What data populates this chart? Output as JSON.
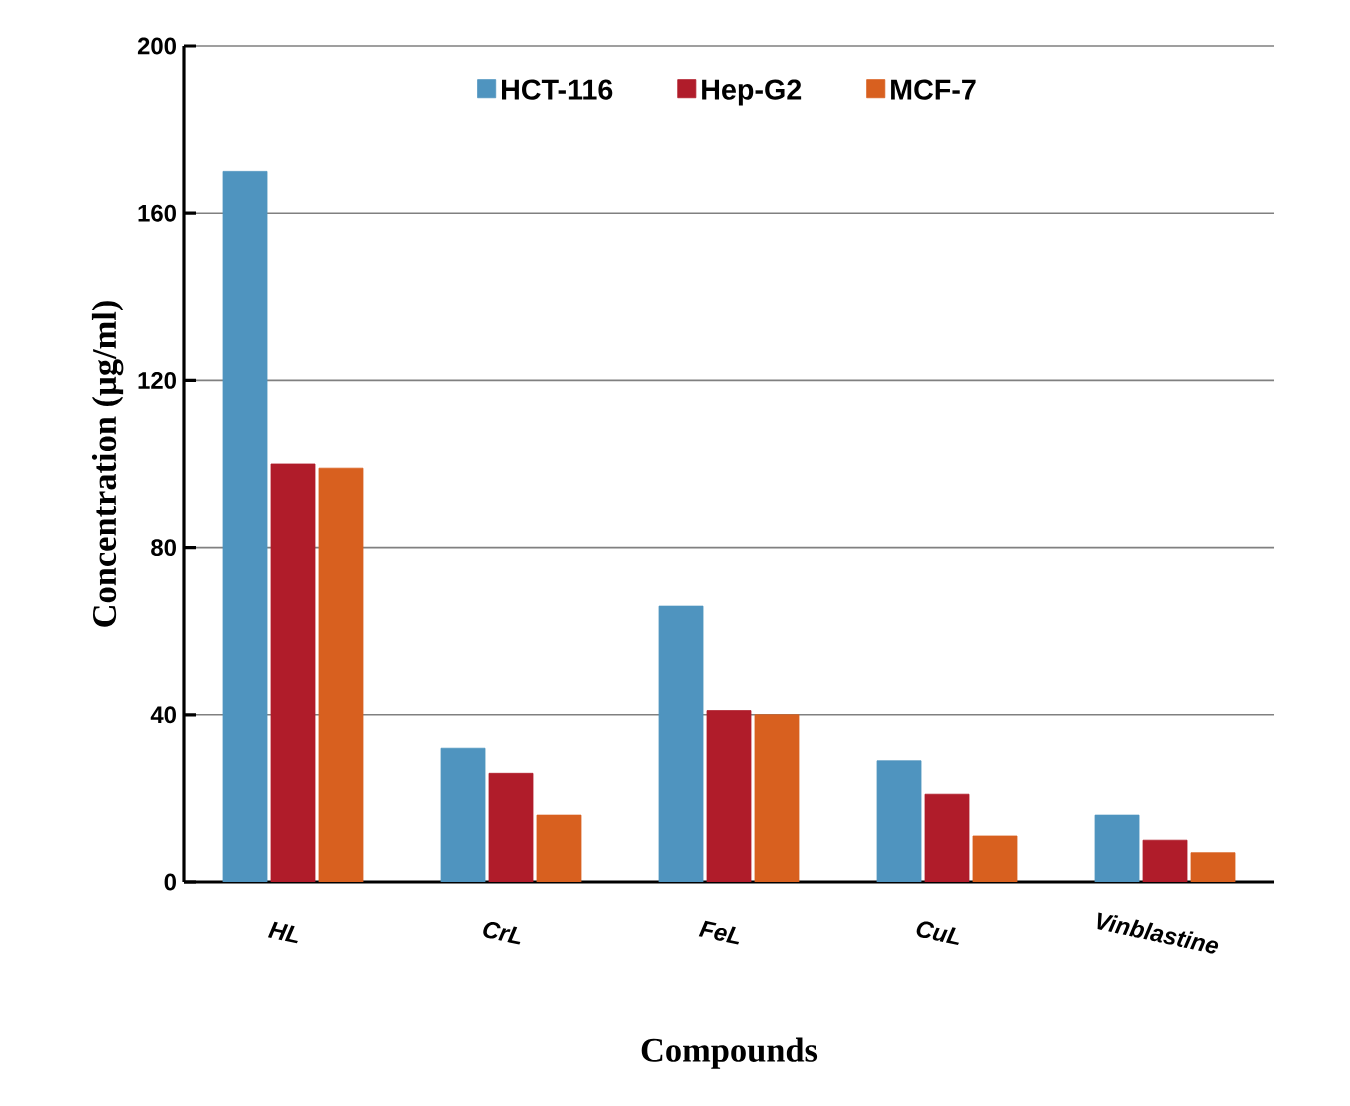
{
  "chart_data": {
    "type": "bar",
    "xlabel": "Compounds",
    "ylabel": "Concentration (µg/ml)",
    "categories": [
      "HL",
      "CrL",
      "FeL",
      "CuL",
      "Vinblastine"
    ],
    "series": [
      {
        "name": "HCT-116",
        "color": "#4f94bf",
        "values": [
          170,
          32,
          66,
          29,
          16
        ]
      },
      {
        "name": "Hep-G2",
        "color": "#b01c2a",
        "values": [
          100,
          26,
          41,
          21,
          10
        ]
      },
      {
        "name": "MCF-7",
        "color": "#d8601f",
        "values": [
          99,
          16,
          40,
          11,
          7
        ]
      }
    ],
    "ylim": [
      0,
      200
    ],
    "yticks": [
      0,
      40,
      80,
      120,
      160,
      200
    ],
    "grid": "y",
    "legend": "top"
  }
}
